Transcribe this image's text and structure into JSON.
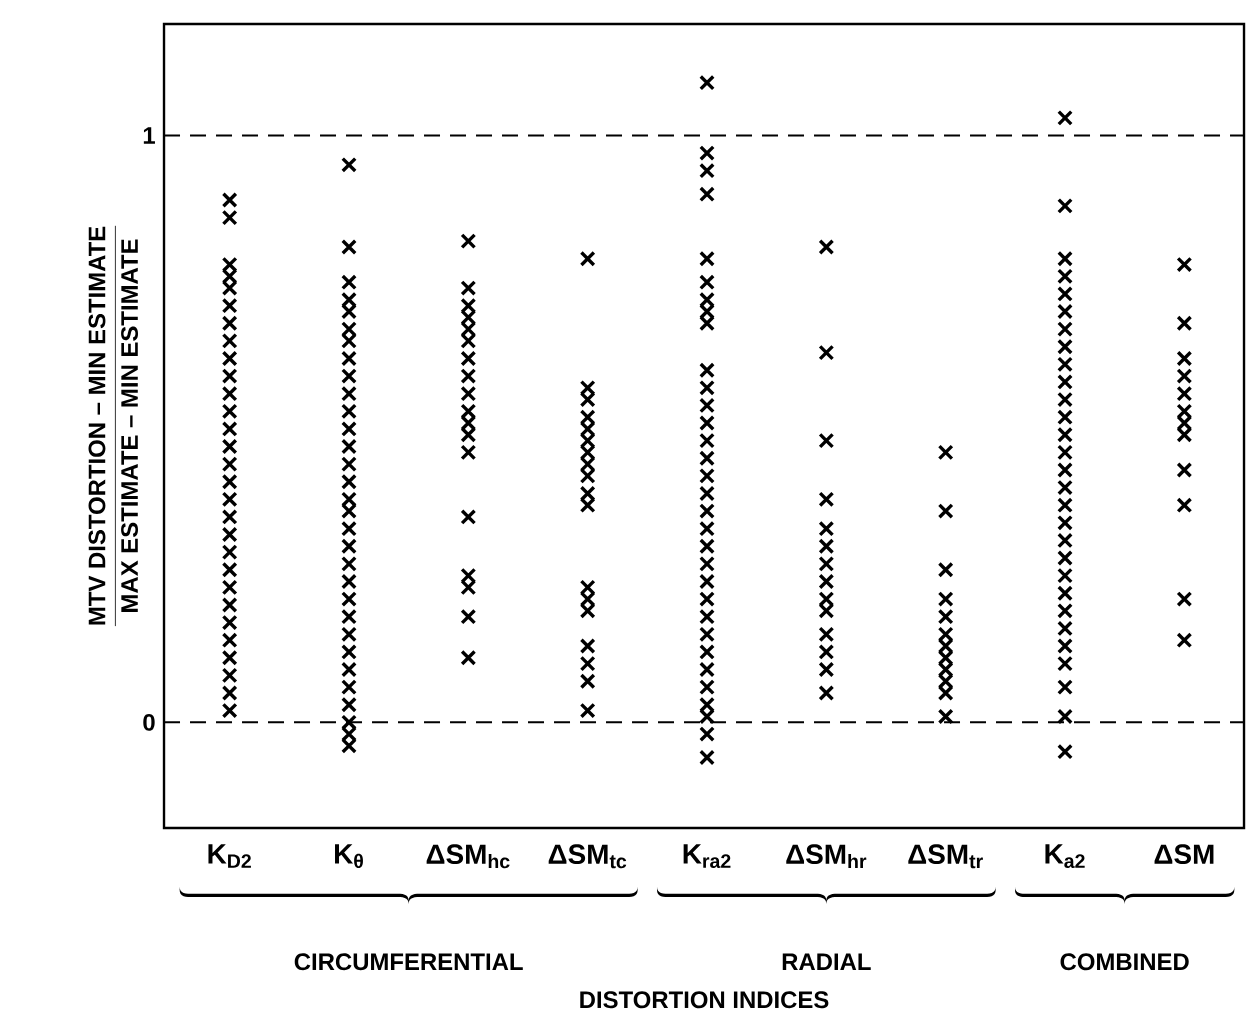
{
  "chart_data": {
    "type": "scatter",
    "categories": [
      "K$_{D2}$",
      "K$_{θ}$",
      "ΔSM$_{hc}$",
      "ΔSM$_{tc}$",
      "K$_{ra2}$",
      "ΔSM$_{hr}$",
      "ΔSM$_{tr}$",
      "K$_{a2}$",
      "ΔSM"
    ],
    "ylabel": "\\frac{\\mbox{MTV DISTORTION -- MIN ESTIMATE}}{\\mbox{MAX ESTIMATE -- MIN ESTIMATE}}",
    "annotations": [
      "CIRCUMFERENTIAL",
      "RADIAL",
      "COMBINED",
      "DISTORTION INDICES"
    ],
    "ylim": [
      -0.18,
      1.19
    ],
    "yticks": [
      0,
      1
    ],
    "marker": "cross",
    "ref_lines": [
      {
        "axis": "y",
        "value": 0,
        "color": "#000000",
        "line_style": "dashed"
      },
      {
        "axis": "y",
        "value": 1,
        "color": "#000000",
        "line_style": "dashed"
      }
    ],
    "series": [
      {
        "color": "#000000",
        "x": [
          "K$_{D2}$",
          "K$_{D2}$",
          "K$_{D2}$",
          "K$_{D2}$",
          "K$_{D2}$",
          "K$_{D2}$",
          "K$_{D2}$",
          "K$_{D2}$",
          "K$_{D2}$",
          "K$_{D2}$",
          "K$_{D2}$",
          "K$_{D2}$",
          "K$_{D2}$",
          "K$_{D2}$",
          "K$_{D2}$",
          "K$_{D2}$",
          "K$_{D2}$",
          "K$_{D2}$",
          "K$_{D2}$",
          "K$_{D2}$",
          "K$_{D2}$",
          "K$_{D2}$",
          "K$_{D2}$",
          "K$_{D2}$",
          "K$_{D2}$",
          "K$_{D2}$",
          "K$_{D2}$",
          "K$_{D2}$",
          "K$_{D2}$"
        ],
        "values": [
          0.89,
          0.86,
          0.78,
          0.76,
          0.74,
          0.71,
          0.68,
          0.65,
          0.62,
          0.59,
          0.56,
          0.53,
          0.5,
          0.47,
          0.44,
          0.41,
          0.38,
          0.35,
          0.32,
          0.29,
          0.26,
          0.23,
          0.2,
          0.17,
          0.14,
          0.11,
          0.08,
          0.05,
          0.02
        ]
      },
      {
        "color": "#000000",
        "x": [
          "K$_{θ}$",
          "K$_{θ}$",
          "K$_{θ}$",
          "K$_{θ}$",
          "K$_{θ}$",
          "K$_{θ}$",
          "K$_{θ}$",
          "K$_{θ}$",
          "K$_{θ}$",
          "K$_{θ}$",
          "K$_{θ}$",
          "K$_{θ}$",
          "K$_{θ}$",
          "K$_{θ}$",
          "K$_{θ}$",
          "K$_{θ}$",
          "K$_{θ}$",
          "K$_{θ}$",
          "K$_{θ}$",
          "K$_{θ}$",
          "K$_{θ}$",
          "K$_{θ}$",
          "K$_{θ}$",
          "K$_{θ}$",
          "K$_{θ}$",
          "K$_{θ}$",
          "K$_{θ}$",
          "K$_{θ}$",
          "K$_{θ}$",
          "K$_{θ}$",
          "K$_{θ}$"
        ],
        "values": [
          0.95,
          0.81,
          0.75,
          0.72,
          0.7,
          0.67,
          0.65,
          0.62,
          0.59,
          0.56,
          0.53,
          0.5,
          0.47,
          0.44,
          0.41,
          0.38,
          0.36,
          0.33,
          0.3,
          0.27,
          0.24,
          0.21,
          0.18,
          0.15,
          0.12,
          0.09,
          0.06,
          0.03,
          0.0,
          -0.02,
          -0.04
        ]
      },
      {
        "color": "#000000",
        "x": [
          "ΔSM$_{hc}$",
          "ΔSM$_{hc}$",
          "ΔSM$_{hc}$",
          "ΔSM$_{hc}$",
          "ΔSM$_{hc}$",
          "ΔSM$_{hc}$",
          "ΔSM$_{hc}$",
          "ΔSM$_{hc}$",
          "ΔSM$_{hc}$",
          "ΔSM$_{hc}$",
          "ΔSM$_{hc}$",
          "ΔSM$_{hc}$",
          "ΔSM$_{hc}$",
          "ΔSM$_{hc}$",
          "ΔSM$_{hc}$",
          "ΔSM$_{hc}$",
          "ΔSM$_{hc}$",
          "ΔSM$_{hc}$"
        ],
        "values": [
          0.82,
          0.74,
          0.71,
          0.69,
          0.67,
          0.65,
          0.62,
          0.59,
          0.56,
          0.53,
          0.51,
          0.49,
          0.46,
          0.35,
          0.25,
          0.23,
          0.18,
          0.11
        ]
      },
      {
        "color": "#000000",
        "x": [
          "ΔSM$_{tc}$",
          "ΔSM$_{tc}$",
          "ΔSM$_{tc}$",
          "ΔSM$_{tc}$",
          "ΔSM$_{tc}$",
          "ΔSM$_{tc}$",
          "ΔSM$_{tc}$",
          "ΔSM$_{tc}$",
          "ΔSM$_{tc}$",
          "ΔSM$_{tc}$",
          "ΔSM$_{tc}$",
          "ΔSM$_{tc}$",
          "ΔSM$_{tc}$",
          "ΔSM$_{tc}$",
          "ΔSM$_{tc}$",
          "ΔSM$_{tc}$",
          "ΔSM$_{tc}$",
          "ΔSM$_{tc}$"
        ],
        "values": [
          0.79,
          0.57,
          0.55,
          0.52,
          0.5,
          0.48,
          0.46,
          0.44,
          0.42,
          0.39,
          0.37,
          0.23,
          0.21,
          0.19,
          0.13,
          0.1,
          0.07,
          0.02
        ]
      },
      {
        "color": "#000000",
        "x": [
          "K$_{ra2}$",
          "K$_{ra2}$",
          "K$_{ra2}$",
          "K$_{ra2}$",
          "K$_{ra2}$",
          "K$_{ra2}$",
          "K$_{ra2}$",
          "K$_{ra2}$",
          "K$_{ra2}$",
          "K$_{ra2}$",
          "K$_{ra2}$",
          "K$_{ra2}$",
          "K$_{ra2}$",
          "K$_{ra2}$",
          "K$_{ra2}$",
          "K$_{ra2}$",
          "K$_{ra2}$",
          "K$_{ra2}$",
          "K$_{ra2}$",
          "K$_{ra2}$",
          "K$_{ra2}$",
          "K$_{ra2}$",
          "K$_{ra2}$",
          "K$_{ra2}$",
          "K$_{ra2}$",
          "K$_{ra2}$",
          "K$_{ra2}$",
          "K$_{ra2}$",
          "K$_{ra2}$",
          "K$_{ra2}$",
          "K$_{ra2}$",
          "K$_{ra2}$"
        ],
        "values": [
          1.09,
          0.97,
          0.94,
          0.9,
          0.79,
          0.75,
          0.72,
          0.7,
          0.68,
          0.6,
          0.57,
          0.54,
          0.51,
          0.48,
          0.45,
          0.42,
          0.39,
          0.36,
          0.33,
          0.3,
          0.27,
          0.24,
          0.21,
          0.18,
          0.15,
          0.12,
          0.09,
          0.06,
          0.03,
          0.01,
          -0.02,
          -0.06
        ]
      },
      {
        "color": "#000000",
        "x": [
          "ΔSM$_{hr}$",
          "ΔSM$_{hr}$",
          "ΔSM$_{hr}$",
          "ΔSM$_{hr}$",
          "ΔSM$_{hr}$",
          "ΔSM$_{hr}$",
          "ΔSM$_{hr}$",
          "ΔSM$_{hr}$",
          "ΔSM$_{hr}$",
          "ΔSM$_{hr}$",
          "ΔSM$_{hr}$",
          "ΔSM$_{hr}$",
          "ΔSM$_{hr}$",
          "ΔSM$_{hr}$"
        ],
        "values": [
          0.81,
          0.63,
          0.48,
          0.38,
          0.33,
          0.3,
          0.27,
          0.24,
          0.21,
          0.19,
          0.15,
          0.12,
          0.09,
          0.05
        ]
      },
      {
        "color": "#000000",
        "x": [
          "ΔSM$_{tr}$",
          "ΔSM$_{tr}$",
          "ΔSM$_{tr}$",
          "ΔSM$_{tr}$",
          "ΔSM$_{tr}$",
          "ΔSM$_{tr}$",
          "ΔSM$_{tr}$",
          "ΔSM$_{tr}$",
          "ΔSM$_{tr}$",
          "ΔSM$_{tr}$",
          "ΔSM$_{tr}$",
          "ΔSM$_{tr}$"
        ],
        "values": [
          0.46,
          0.36,
          0.26,
          0.21,
          0.18,
          0.15,
          0.13,
          0.11,
          0.09,
          0.07,
          0.05,
          0.01
        ]
      },
      {
        "color": "#000000",
        "x": [
          "K$_{a2}$",
          "K$_{a2}$",
          "K$_{a2}$",
          "K$_{a2}$",
          "K$_{a2}$",
          "K$_{a2}$",
          "K$_{a2}$",
          "K$_{a2}$",
          "K$_{a2}$",
          "K$_{a2}$",
          "K$_{a2}$",
          "K$_{a2}$",
          "K$_{a2}$",
          "K$_{a2}$",
          "K$_{a2}$",
          "K$_{a2}$",
          "K$_{a2}$",
          "K$_{a2}$",
          "K$_{a2}$",
          "K$_{a2}$",
          "K$_{a2}$",
          "K$_{a2}$",
          "K$_{a2}$",
          "K$_{a2}$",
          "K$_{a2}$",
          "K$_{a2}$",
          "K$_{a2}$",
          "K$_{a2}$",
          "K$_{a2}$"
        ],
        "values": [
          1.03,
          0.88,
          0.79,
          0.76,
          0.73,
          0.7,
          0.67,
          0.64,
          0.61,
          0.58,
          0.55,
          0.52,
          0.49,
          0.46,
          0.43,
          0.4,
          0.37,
          0.34,
          0.31,
          0.28,
          0.25,
          0.22,
          0.19,
          0.16,
          0.13,
          0.1,
          0.06,
          0.01,
          -0.05
        ]
      },
      {
        "color": "#000000",
        "x": [
          "ΔSM",
          "ΔSM",
          "ΔSM",
          "ΔSM",
          "ΔSM",
          "ΔSM",
          "ΔSM",
          "ΔSM",
          "ΔSM",
          "ΔSM",
          "ΔSM",
          "ΔSM"
        ],
        "values": [
          0.78,
          0.68,
          0.62,
          0.59,
          0.56,
          0.53,
          0.51,
          0.49,
          0.43,
          0.37,
          0.21,
          0.14
        ]
      }
    ]
  }
}
